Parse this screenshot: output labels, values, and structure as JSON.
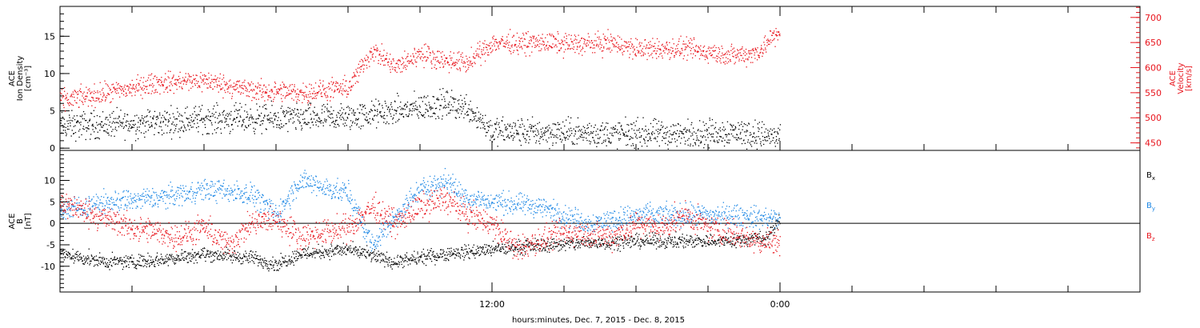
{
  "colors": {
    "black": "#000000",
    "red": "#e8141c",
    "blue": "#1e88e5",
    "axis_red": "#e8141c"
  },
  "xaxis": {
    "label": "hours:minutes, Dec.  7, 2015 - Dec.  8, 2015",
    "ticks": [
      {
        "hour": 12,
        "label": "12:00"
      },
      {
        "hour": 24,
        "label": "0:00"
      }
    ]
  },
  "chart_data": [
    {
      "type": "scatter",
      "title": "",
      "x_unit": "hours since Dec 7, 2015 00:00",
      "xlim": [
        -6,
        39
      ],
      "left_axis": {
        "label_lines": [
          "ACE",
          "Ion Density",
          "[cm⁻³]"
        ],
        "ylim": [
          -0.3,
          19
        ],
        "ticks": [
          0,
          5,
          10,
          15
        ],
        "color": "#000000"
      },
      "right_axis": {
        "label_lines": [
          "ACE",
          "Velocity",
          "[km/s]"
        ],
        "ylim": [
          435,
          722
        ],
        "ticks": [
          450,
          500,
          550,
          600,
          650,
          700
        ],
        "color": "#e8141c"
      },
      "series": [
        {
          "name": "",
          "axis": "left",
          "color": "#000000",
          "knots": [
            [
              -6,
              3
            ],
            [
              -2,
              3.5
            ],
            [
              0,
              4
            ],
            [
              2,
              4
            ],
            [
              4,
              4
            ],
            [
              6,
              4.2
            ],
            [
              8,
              5
            ],
            [
              10,
              6
            ],
            [
              11,
              5.5
            ],
            [
              12,
              2.3
            ],
            [
              14,
              2.2
            ],
            [
              16,
              2
            ],
            [
              18,
              2
            ],
            [
              20,
              1.9
            ],
            [
              22,
              2.3
            ],
            [
              24,
              1.5
            ]
          ],
          "noise": 1.6
        },
        {
          "name": "",
          "axis": "right",
          "color": "#e8141c",
          "knots": [
            [
              -6,
              535
            ],
            [
              -4,
              550
            ],
            [
              -2,
              570
            ],
            [
              0,
              575
            ],
            [
              2,
              555
            ],
            [
              4,
              550
            ],
            [
              6,
              560
            ],
            [
              7,
              635
            ],
            [
              8,
              600
            ],
            [
              9,
              630
            ],
            [
              10,
              615
            ],
            [
              11,
              610
            ],
            [
              12,
              650
            ],
            [
              14,
              650
            ],
            [
              16,
              648
            ],
            [
              17,
              650
            ],
            [
              18,
              637
            ],
            [
              20,
              638
            ],
            [
              22,
              625
            ],
            [
              23,
              630
            ],
            [
              24,
              675
            ]
          ],
          "noise": 18
        }
      ]
    },
    {
      "type": "scatter",
      "title": "",
      "x_unit": "hours since Dec 7, 2015 00:00",
      "xlim": [
        -6,
        39
      ],
      "left_axis": {
        "label_lines": [
          "ACE",
          "B",
          "[nT]"
        ],
        "ylim": [
          -16,
          17
        ],
        "ticks": [
          -10,
          -5,
          0,
          5,
          10
        ],
        "color": "#000000"
      },
      "zero_line": true,
      "series": [
        {
          "name": "Bx",
          "color": "#000000",
          "knots": [
            [
              -6,
              -7
            ],
            [
              -4,
              -9
            ],
            [
              -2,
              -8.5
            ],
            [
              0,
              -7
            ],
            [
              2,
              -8
            ],
            [
              3,
              -9.5
            ],
            [
              4,
              -7
            ],
            [
              6,
              -6
            ],
            [
              8,
              -9
            ],
            [
              10,
              -7
            ],
            [
              12,
              -6
            ],
            [
              14,
              -5
            ],
            [
              16,
              -4.5
            ],
            [
              18,
              -4
            ],
            [
              20,
              -4
            ],
            [
              22,
              -4
            ],
            [
              23.5,
              -3
            ],
            [
              24,
              1
            ]
          ],
          "noise": 1.4
        },
        {
          "name": "By",
          "color": "#1e88e5",
          "knots": [
            [
              -6,
              3
            ],
            [
              -4,
              5
            ],
            [
              -2,
              6
            ],
            [
              0,
              8
            ],
            [
              2,
              7
            ],
            [
              3,
              2
            ],
            [
              4,
              10
            ],
            [
              6,
              7
            ],
            [
              7,
              -5
            ],
            [
              8,
              2
            ],
            [
              9,
              8
            ],
            [
              10,
              10
            ],
            [
              11,
              6
            ],
            [
              12,
              5
            ],
            [
              14,
              4
            ],
            [
              16,
              0
            ],
            [
              18,
              2
            ],
            [
              20,
              2
            ],
            [
              22,
              2
            ],
            [
              24,
              1
            ]
          ],
          "noise": 2.2
        },
        {
          "name": "Bz",
          "color": "#e8141c",
          "knots": [
            [
              -6,
              5
            ],
            [
              -5,
              3
            ],
            [
              -3,
              -1
            ],
            [
              -1,
              -3
            ],
            [
              0,
              -1
            ],
            [
              1,
              -5
            ],
            [
              2,
              0
            ],
            [
              3,
              1
            ],
            [
              4,
              -3
            ],
            [
              6,
              -1
            ],
            [
              7,
              4
            ],
            [
              8,
              0
            ],
            [
              9,
              4
            ],
            [
              10,
              6
            ],
            [
              11,
              2
            ],
            [
              12,
              0
            ],
            [
              13,
              -6
            ],
            [
              15,
              -2
            ],
            [
              17,
              -3
            ],
            [
              18,
              0
            ],
            [
              19,
              -1
            ],
            [
              20,
              2
            ],
            [
              21,
              -1
            ],
            [
              22,
              -2
            ],
            [
              23,
              -4
            ],
            [
              24,
              -4
            ]
          ],
          "noise": 2.6
        }
      ],
      "legend": [
        {
          "main": "B",
          "sub": "x",
          "color": "#000000"
        },
        {
          "main": "B",
          "sub": "y",
          "color": "#1e88e5"
        },
        {
          "main": "B",
          "sub": "z",
          "color": "#e8141c"
        }
      ]
    }
  ]
}
